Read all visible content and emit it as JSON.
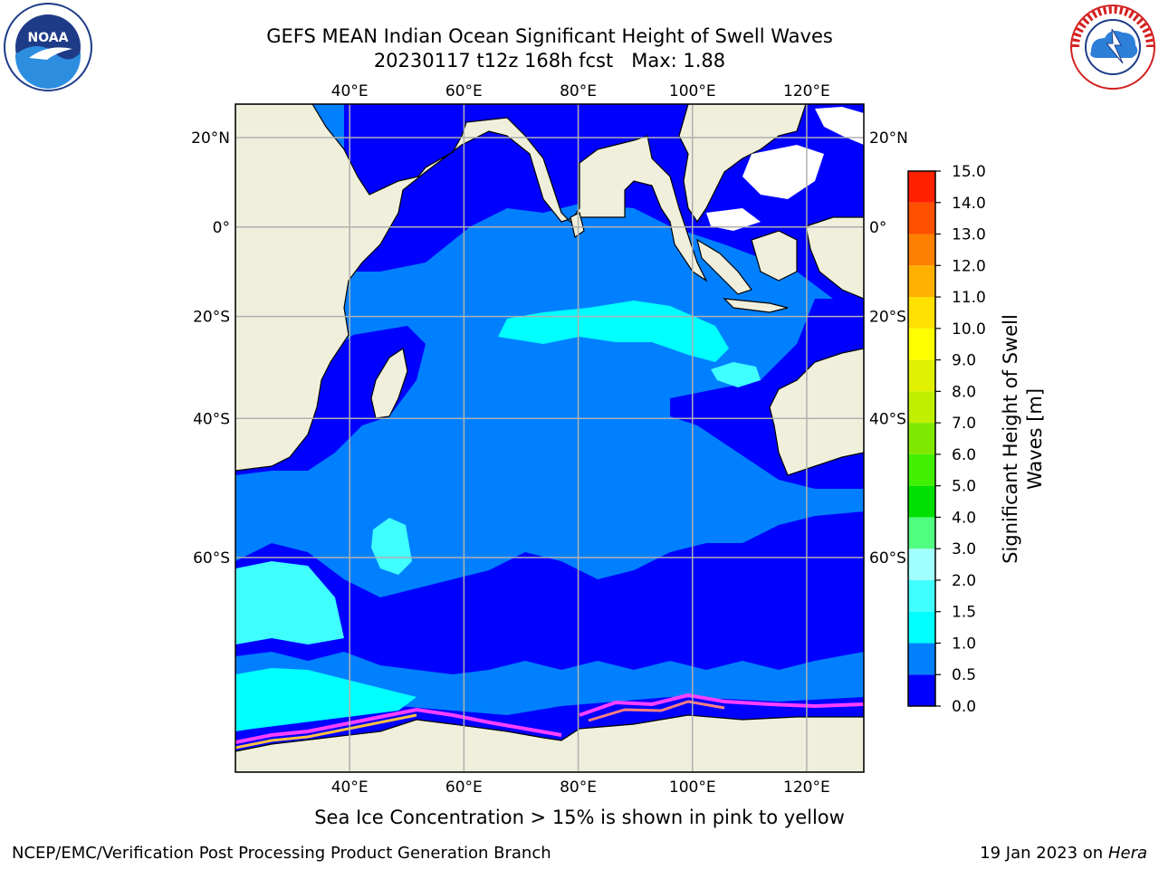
{
  "title": {
    "line1": "GEFS MEAN Indian Ocean Significant Height of Swell Waves",
    "line2": "20230117 t12z 168h fcst   Max: 1.88"
  },
  "caption": "Sea Ice Concentration > 15% is shown in pink to yellow",
  "footer": {
    "left": "NCEP/EMC/Verification Post Processing Product Generation Branch",
    "right_date": "19 Jan 2023 on ",
    "right_host": "Hera"
  },
  "logos": {
    "left": "noaa-logo",
    "right": "nws-logo",
    "left_text": "NOAA",
    "left_ring_text": "NATIONAL OCEANIC AND ATMOSPHERIC ADMINISTRATION · U.S. DEPARTMENT OF COMMERCE",
    "right_ring_text": "NATIONAL WEATHER SERVICE"
  },
  "map": {
    "lon_range": [
      20,
      130
    ],
    "lat_range": [
      -77,
      27
    ],
    "lon_ticks": [
      40,
      60,
      80,
      100,
      120
    ],
    "lon_tick_labels": [
      "40°E",
      "60°E",
      "80°E",
      "100°E",
      "120°E"
    ],
    "lat_ticks": [
      20,
      0,
      -20,
      -40,
      -60
    ],
    "lat_tick_labels": [
      "20°N",
      "0°",
      "20°S",
      "40°S",
      "60°S"
    ],
    "grid": true,
    "land_color": "#efefdc",
    "colors": {
      "swell_0_0.5": "#0000ff",
      "swell_0.5_1.0": "#0080ff",
      "swell_1.0_1.5": "#00ffff",
      "swell_1.5_2.0": "#40ffff",
      "sea_ice": [
        "#ff40ff",
        "#ff8080",
        "#ffc040",
        "#ffff80"
      ]
    }
  },
  "colorbar": {
    "label_line1": "Significant Height of Swell",
    "label_line2": "Waves [m]",
    "ticks": [
      "0.0",
      "0.5",
      "1.0",
      "1.5",
      "2.0",
      "3.0",
      "4.0",
      "5.0",
      "6.0",
      "7.0",
      "8.0",
      "9.0",
      "10.0",
      "11.0",
      "12.0",
      "13.0",
      "14.0",
      "15.0"
    ],
    "colors": [
      "#0000ff",
      "#0080ff",
      "#00ffff",
      "#40ffff",
      "#a0ffff",
      "#50ff80",
      "#00e000",
      "#40f000",
      "#80e800",
      "#c0f000",
      "#e0f000",
      "#ffff00",
      "#ffe000",
      "#ffb000",
      "#ff8000",
      "#ff5000",
      "#ff2000"
    ]
  }
}
